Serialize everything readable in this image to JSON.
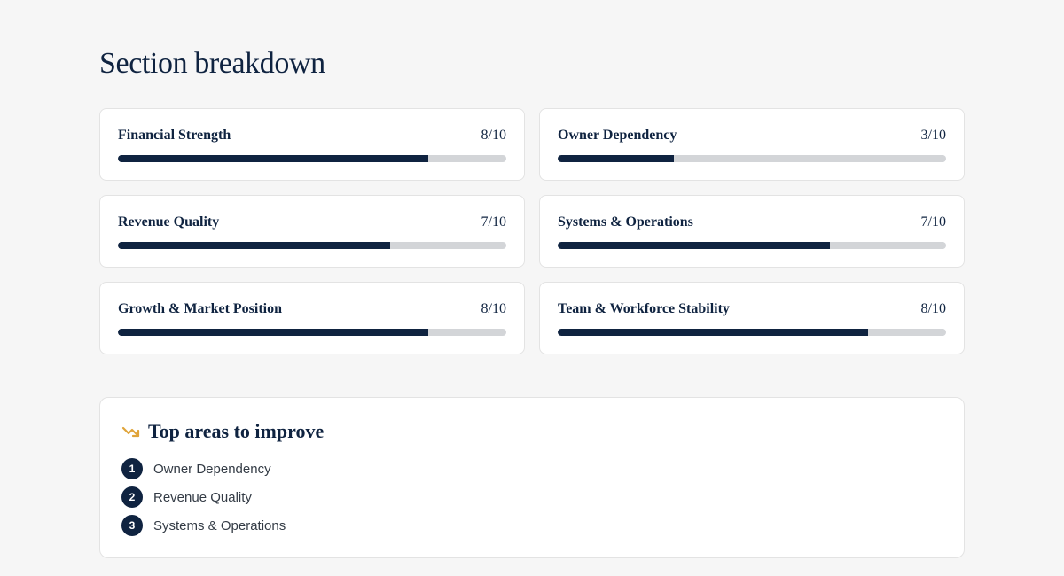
{
  "page": {
    "title": "Section breakdown"
  },
  "sections": [
    {
      "name": "Financial Strength",
      "score_label": "8/10",
      "score": 8,
      "max": 10
    },
    {
      "name": "Owner Dependency",
      "score_label": "3/10",
      "score": 3,
      "max": 10
    },
    {
      "name": "Revenue Quality",
      "score_label": "7/10",
      "score": 7,
      "max": 10
    },
    {
      "name": "Systems & Operations",
      "score_label": "7/10",
      "score": 7,
      "max": 10
    },
    {
      "name": "Growth & Market Position",
      "score_label": "8/10",
      "score": 8,
      "max": 10
    },
    {
      "name": "Team & Workforce Stability",
      "score_label": "8/10",
      "score": 8,
      "max": 10
    }
  ],
  "improve": {
    "icon": "trending-down-icon",
    "title": "Top areas to improve",
    "items": [
      {
        "rank": "1",
        "label": "Owner Dependency"
      },
      {
        "rank": "2",
        "label": "Revenue Quality"
      },
      {
        "rank": "3",
        "label": "Systems & Operations"
      }
    ]
  },
  "colors": {
    "primary": "#0f2340",
    "track": "#d3d5d8",
    "accent": "#e0a43a",
    "background": "#f6f6f6"
  }
}
